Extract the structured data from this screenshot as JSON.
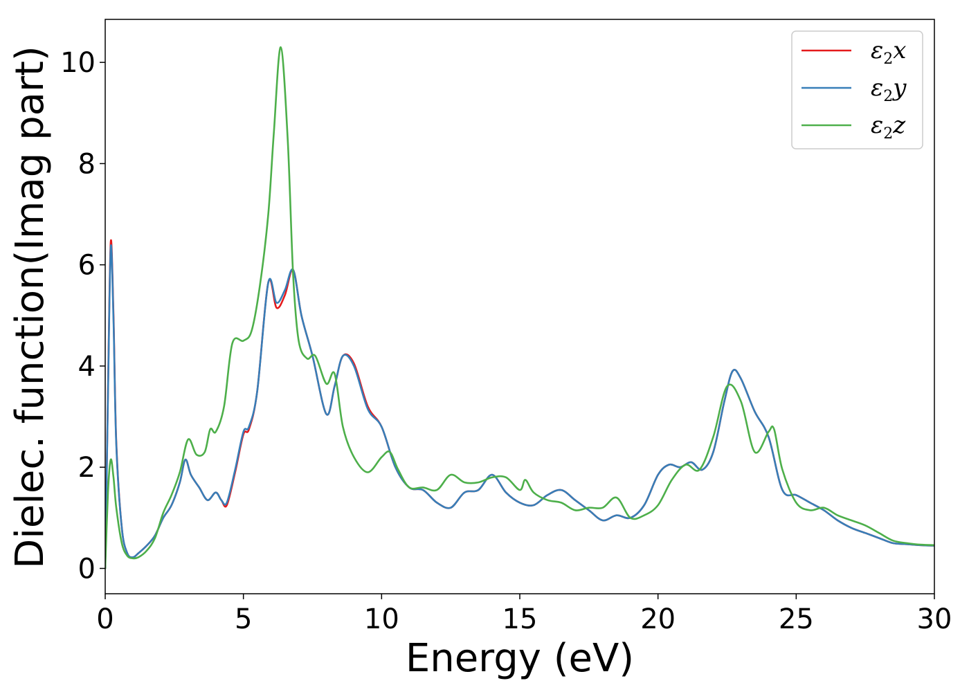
{
  "chart_data": {
    "type": "line",
    "title": "",
    "xlabel": "Energy (eV)",
    "ylabel": "Dielec. function(Imag part)",
    "xlim": [
      0,
      30
    ],
    "ylim": [
      -0.5,
      10.85
    ],
    "xticks": [
      0,
      5,
      10,
      15,
      20,
      25,
      30
    ],
    "yticks": [
      0,
      2,
      4,
      6,
      8,
      10
    ],
    "grid": false,
    "legend_position": "top-right",
    "series": [
      {
        "name": "ε₂x",
        "legend_base": "ε",
        "legend_sub": "2",
        "legend_tail": "x",
        "color": "#e41a1c",
        "x": [
          0,
          0.1,
          0.2,
          0.3,
          0.4,
          0.6,
          0.8,
          1.0,
          1.2,
          1.5,
          1.8,
          2.1,
          2.4,
          2.7,
          2.9,
          3.1,
          3.4,
          3.7,
          4.0,
          4.2,
          4.4,
          4.7,
          5.0,
          5.2,
          5.5,
          5.9,
          6.2,
          6.5,
          6.8,
          7.1,
          7.5,
          8.0,
          8.3,
          8.6,
          9.0,
          9.5,
          10.0,
          10.5,
          11.0,
          11.5,
          12.0,
          12.5,
          13.0,
          13.5,
          14.0,
          14.5,
          15.0,
          15.5,
          16.0,
          16.5,
          17.0,
          17.5,
          18.0,
          18.5,
          19.0,
          19.5,
          20.0,
          20.4,
          20.8,
          21.2,
          21.6,
          22.0,
          22.4,
          22.7,
          23.0,
          23.5,
          24.0,
          24.5,
          25.0,
          25.5,
          26.0,
          26.5,
          27.0,
          27.5,
          28.0,
          28.5,
          29.0,
          29.5,
          30.0
        ],
        "y": [
          0.0,
          3.5,
          6.45,
          5.0,
          2.5,
          0.8,
          0.3,
          0.22,
          0.3,
          0.45,
          0.65,
          1.0,
          1.25,
          1.7,
          2.15,
          1.85,
          1.6,
          1.35,
          1.5,
          1.35,
          1.25,
          1.9,
          2.65,
          2.75,
          3.5,
          5.65,
          5.15,
          5.4,
          5.9,
          5.0,
          4.2,
          3.05,
          3.6,
          4.2,
          4.05,
          3.2,
          2.8,
          2.0,
          1.6,
          1.55,
          1.3,
          1.2,
          1.5,
          1.55,
          1.85,
          1.5,
          1.3,
          1.25,
          1.45,
          1.55,
          1.35,
          1.15,
          0.95,
          1.05,
          1.0,
          1.25,
          1.85,
          2.05,
          2.0,
          2.1,
          1.95,
          2.3,
          3.3,
          3.9,
          3.75,
          3.1,
          2.6,
          1.55,
          1.45,
          1.3,
          1.15,
          0.95,
          0.8,
          0.7,
          0.6,
          0.5,
          0.48,
          0.46,
          0.45
        ]
      },
      {
        "name": "ε₂y",
        "legend_base": "ε",
        "legend_sub": "2",
        "legend_tail": "y",
        "color": "#377eb8",
        "x": [
          0,
          0.1,
          0.2,
          0.3,
          0.4,
          0.6,
          0.8,
          1.0,
          1.2,
          1.5,
          1.8,
          2.1,
          2.4,
          2.7,
          2.9,
          3.1,
          3.4,
          3.7,
          4.0,
          4.2,
          4.4,
          4.7,
          5.0,
          5.2,
          5.5,
          5.9,
          6.2,
          6.5,
          6.8,
          7.1,
          7.5,
          8.0,
          8.3,
          8.6,
          9.0,
          9.5,
          10.0,
          10.5,
          11.0,
          11.5,
          12.0,
          12.5,
          13.0,
          13.5,
          14.0,
          14.5,
          15.0,
          15.5,
          16.0,
          16.5,
          17.0,
          17.5,
          18.0,
          18.5,
          19.0,
          19.5,
          20.0,
          20.4,
          20.8,
          21.2,
          21.6,
          22.0,
          22.4,
          22.7,
          23.0,
          23.5,
          24.0,
          24.5,
          25.0,
          25.5,
          26.0,
          26.5,
          27.0,
          27.5,
          28.0,
          28.5,
          29.0,
          29.5,
          30.0
        ],
        "y": [
          0.0,
          3.4,
          6.35,
          4.9,
          2.45,
          0.8,
          0.3,
          0.22,
          0.3,
          0.45,
          0.65,
          1.0,
          1.25,
          1.7,
          2.15,
          1.85,
          1.6,
          1.35,
          1.5,
          1.35,
          1.3,
          1.95,
          2.7,
          2.8,
          3.5,
          5.65,
          5.25,
          5.5,
          5.9,
          5.0,
          4.2,
          3.05,
          3.6,
          4.2,
          4.0,
          3.15,
          2.8,
          2.0,
          1.6,
          1.55,
          1.3,
          1.2,
          1.5,
          1.55,
          1.85,
          1.5,
          1.3,
          1.25,
          1.45,
          1.55,
          1.35,
          1.15,
          0.95,
          1.05,
          1.0,
          1.25,
          1.85,
          2.05,
          2.0,
          2.1,
          1.95,
          2.3,
          3.3,
          3.9,
          3.75,
          3.1,
          2.6,
          1.55,
          1.45,
          1.3,
          1.15,
          0.95,
          0.8,
          0.7,
          0.6,
          0.5,
          0.48,
          0.46,
          0.45
        ]
      },
      {
        "name": "ε₂z",
        "legend_base": "ε",
        "legend_sub": "2",
        "legend_tail": "z",
        "color": "#4daf4a",
        "x": [
          0,
          0.1,
          0.2,
          0.3,
          0.4,
          0.6,
          0.8,
          1.0,
          1.2,
          1.5,
          1.8,
          2.1,
          2.4,
          2.7,
          3.0,
          3.3,
          3.6,
          3.8,
          4.0,
          4.3,
          4.6,
          5.0,
          5.3,
          5.6,
          5.9,
          6.1,
          6.35,
          6.6,
          6.8,
          7.0,
          7.3,
          7.6,
          8.0,
          8.3,
          8.6,
          9.0,
          9.5,
          10.0,
          10.3,
          10.6,
          11.0,
          11.5,
          12.0,
          12.5,
          13.0,
          13.5,
          14.0,
          14.5,
          15.0,
          15.2,
          15.5,
          16.0,
          16.5,
          17.0,
          17.5,
          18.0,
          18.5,
          19.0,
          19.5,
          20.0,
          20.5,
          21.0,
          21.5,
          22.0,
          22.5,
          23.0,
          23.5,
          24.0,
          24.2,
          24.5,
          25.0,
          25.5,
          26.0,
          26.5,
          27.0,
          27.5,
          28.0,
          28.5,
          29.0,
          29.5,
          30.0
        ],
        "y": [
          0.0,
          1.5,
          2.15,
          1.8,
          1.2,
          0.5,
          0.25,
          0.2,
          0.22,
          0.35,
          0.6,
          1.1,
          1.45,
          1.9,
          2.55,
          2.25,
          2.3,
          2.75,
          2.7,
          3.2,
          4.45,
          4.5,
          4.7,
          5.6,
          7.0,
          8.6,
          10.3,
          8.5,
          5.8,
          4.5,
          4.15,
          4.2,
          3.65,
          3.85,
          2.8,
          2.2,
          1.9,
          2.2,
          2.3,
          1.95,
          1.6,
          1.6,
          1.55,
          1.85,
          1.7,
          1.7,
          1.8,
          1.8,
          1.55,
          1.75,
          1.5,
          1.35,
          1.3,
          1.15,
          1.2,
          1.2,
          1.4,
          1.0,
          1.05,
          1.25,
          1.75,
          2.05,
          1.95,
          2.6,
          3.6,
          3.3,
          2.3,
          2.7,
          2.75,
          1.95,
          1.3,
          1.15,
          1.2,
          1.05,
          0.95,
          0.85,
          0.7,
          0.55,
          0.5,
          0.47,
          0.46
        ]
      }
    ]
  }
}
